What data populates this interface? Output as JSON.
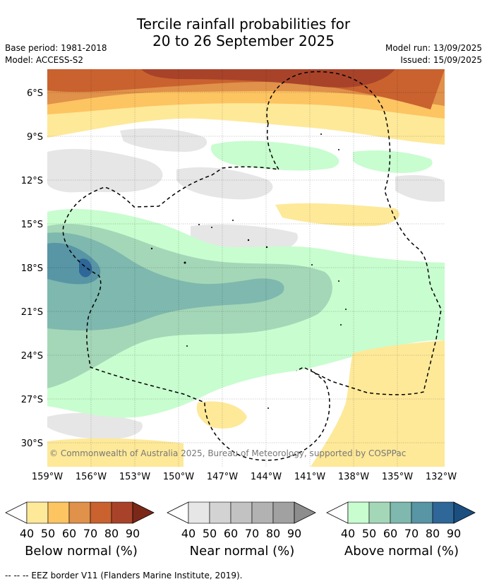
{
  "header": {
    "title_line1": "Tercile rainfall probabilities for",
    "title_line2": "20 to 26 September 2025",
    "base_period": "Base period: 1981-2018",
    "model": "Model: ACCESS-S2",
    "model_run": "Model run: 13/09/2025",
    "issued": "Issued: 15/09/2025"
  },
  "map": {
    "lat_labels": [
      "6°S",
      "9°S",
      "12°S",
      "15°S",
      "18°S",
      "21°S",
      "24°S",
      "27°S",
      "30°S"
    ],
    "lon_labels": [
      "159°W",
      "156°W",
      "153°W",
      "150°W",
      "147°W",
      "144°W",
      "141°W",
      "138°W",
      "135°W",
      "132°W"
    ],
    "copyright": "© Commonwealth of Australia 2025, Bureau of Meteorology, supported by COSPPac"
  },
  "colorbars": [
    {
      "label": "Below normal (%)",
      "ticks": [
        "40",
        "50",
        "60",
        "70",
        "80",
        "90"
      ],
      "colors": [
        "#ffffff",
        "#fee999",
        "#fdc462",
        "#e0914a",
        "#c9622f",
        "#a8432a",
        "#7c2818"
      ]
    },
    {
      "label": "Near normal (%)",
      "ticks": [
        "40",
        "50",
        "60",
        "70",
        "80",
        "90"
      ],
      "colors": [
        "#ffffff",
        "#e6e6e6",
        "#d3d3d3",
        "#c2c2c2",
        "#b2b2b2",
        "#a1a1a1",
        "#8d8d8d"
      ]
    },
    {
      "label": "Above normal (%)",
      "ticks": [
        "40",
        "50",
        "60",
        "70",
        "80",
        "90"
      ],
      "colors": [
        "#ffffff",
        "#c8fdcf",
        "#a4d7b7",
        "#7eb8ae",
        "#5895a5",
        "#2e6798",
        "#1a4f80"
      ]
    }
  ],
  "footer": {
    "legend_text": "--  --  -- EEZ border V11 (Flanders Marine Institute, 2019)."
  }
}
